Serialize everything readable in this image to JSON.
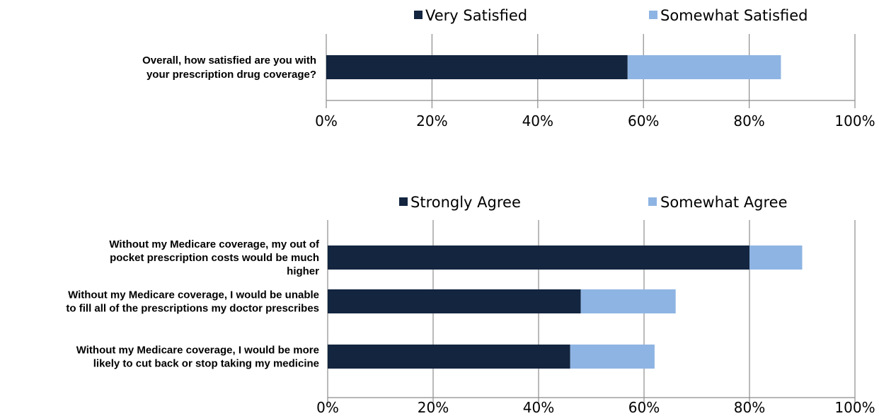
{
  "chart_data": [
    {
      "type": "bar",
      "orientation": "horizontal",
      "stacked": true,
      "categories": [
        "Overall, how satisfied are you with your prescription drug coverage?"
      ],
      "series": [
        {
          "name": "Very Satisfied",
          "values": [
            57
          ],
          "color": "#13253f"
        },
        {
          "name": "Somewhat Satisfied",
          "values": [
            29
          ],
          "color": "#8eb4e3"
        }
      ],
      "xlim": [
        0,
        100
      ],
      "x_ticks": [
        "0%",
        "20%",
        "40%",
        "60%",
        "80%",
        "100%"
      ],
      "grid": true,
      "legend_position": "top"
    },
    {
      "type": "bar",
      "orientation": "horizontal",
      "stacked": true,
      "categories": [
        "Without my Medicare coverage, my out of pocket prescription costs would be much higher",
        "Without my Medicare coverage, I would be unable to fill all of the prescriptions my doctor prescribes",
        "Without my Medicare coverage, I would be more likely to cut back or stop taking my medicine"
      ],
      "series": [
        {
          "name": "Strongly Agree",
          "values": [
            80,
            48,
            46
          ],
          "color": "#13253f"
        },
        {
          "name": "Somewhat Agree",
          "values": [
            10,
            18,
            16
          ],
          "color": "#8eb4e3"
        }
      ],
      "xlim": [
        0,
        100
      ],
      "x_ticks": [
        "0%",
        "20%",
        "40%",
        "60%",
        "80%",
        "100%"
      ],
      "grid": true,
      "legend_position": "top"
    }
  ]
}
